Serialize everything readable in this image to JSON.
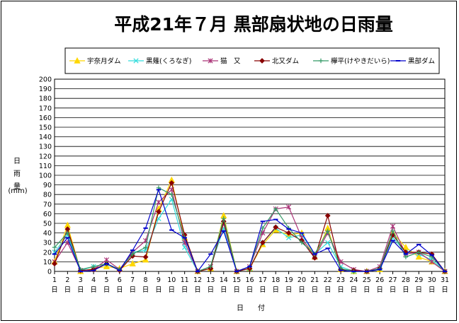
{
  "chart_data": {
    "type": "line",
    "title": "平成21年７月 黒部扇状地の日雨量",
    "ylabel_chars": [
      "日",
      "雨",
      "量"
    ],
    "yunit": "(mm)",
    "xlabel": "日　　付",
    "xtick_suffix": "日",
    "ylim": [
      0,
      200
    ],
    "ystep": 10,
    "grid": true,
    "legend_position": "top",
    "categories": [
      "1",
      "2",
      "3",
      "4",
      "5",
      "6",
      "7",
      "8",
      "9",
      "10",
      "11",
      "12",
      "13",
      "14",
      "15",
      "16",
      "17",
      "18",
      "19",
      "20",
      "21",
      "22",
      "23",
      "24",
      "25",
      "26",
      "27",
      "28",
      "29",
      "30",
      "31"
    ],
    "series": [
      {
        "name": "宇奈月ダム",
        "color": "#ffd700",
        "marker": "triangle",
        "values": [
          10,
          48,
          0,
          3,
          5,
          3,
          8,
          12,
          65,
          95,
          35,
          0,
          3,
          58,
          0,
          3,
          28,
          43,
          38,
          40,
          15,
          45,
          2,
          0,
          0,
          2,
          40,
          25,
          15,
          10,
          0
        ]
      },
      {
        "name": "黒薙(くろなぎ)",
        "color": "#33dddd",
        "marker": "x",
        "values": [
          20,
          38,
          1,
          5,
          8,
          2,
          20,
          22,
          55,
          75,
          25,
          0,
          5,
          45,
          0,
          3,
          30,
          45,
          35,
          38,
          18,
          30,
          5,
          0,
          0,
          3,
          35,
          20,
          18,
          12,
          0
        ]
      },
      {
        "name": "猫　又",
        "color": "#aa3377",
        "marker": "star",
        "values": [
          10,
          30,
          1,
          2,
          12,
          2,
          20,
          32,
          72,
          85,
          30,
          0,
          5,
          50,
          0,
          5,
          40,
          65,
          67,
          35,
          15,
          40,
          10,
          2,
          0,
          5,
          47,
          18,
          20,
          10,
          0
        ]
      },
      {
        "name": "北又ダム",
        "color": "#880000",
        "marker": "diamond",
        "values": [
          8,
          44,
          1,
          2,
          8,
          1,
          16,
          15,
          62,
          92,
          38,
          0,
          3,
          52,
          0,
          3,
          30,
          46,
          40,
          32,
          14,
          58,
          2,
          1,
          0,
          3,
          38,
          20,
          20,
          18,
          0
        ]
      },
      {
        "name": "欅平(けやきだいら)",
        "color": "#339966",
        "marker": "plus",
        "values": [
          25,
          40,
          2,
          5,
          8,
          2,
          18,
          25,
          87,
          80,
          35,
          0,
          5,
          55,
          0,
          5,
          45,
          65,
          45,
          30,
          18,
          42,
          3,
          0,
          0,
          3,
          42,
          15,
          20,
          15,
          0
        ]
      },
      {
        "name": "黒部ダム",
        "color": "#0000cc",
        "marker": "dash",
        "values": [
          18,
          35,
          0,
          1,
          8,
          1,
          22,
          45,
          85,
          43,
          35,
          0,
          18,
          42,
          0,
          5,
          52,
          54,
          44,
          40,
          18,
          24,
          1,
          0,
          0,
          2,
          32,
          18,
          28,
          17,
          0
        ]
      }
    ]
  }
}
